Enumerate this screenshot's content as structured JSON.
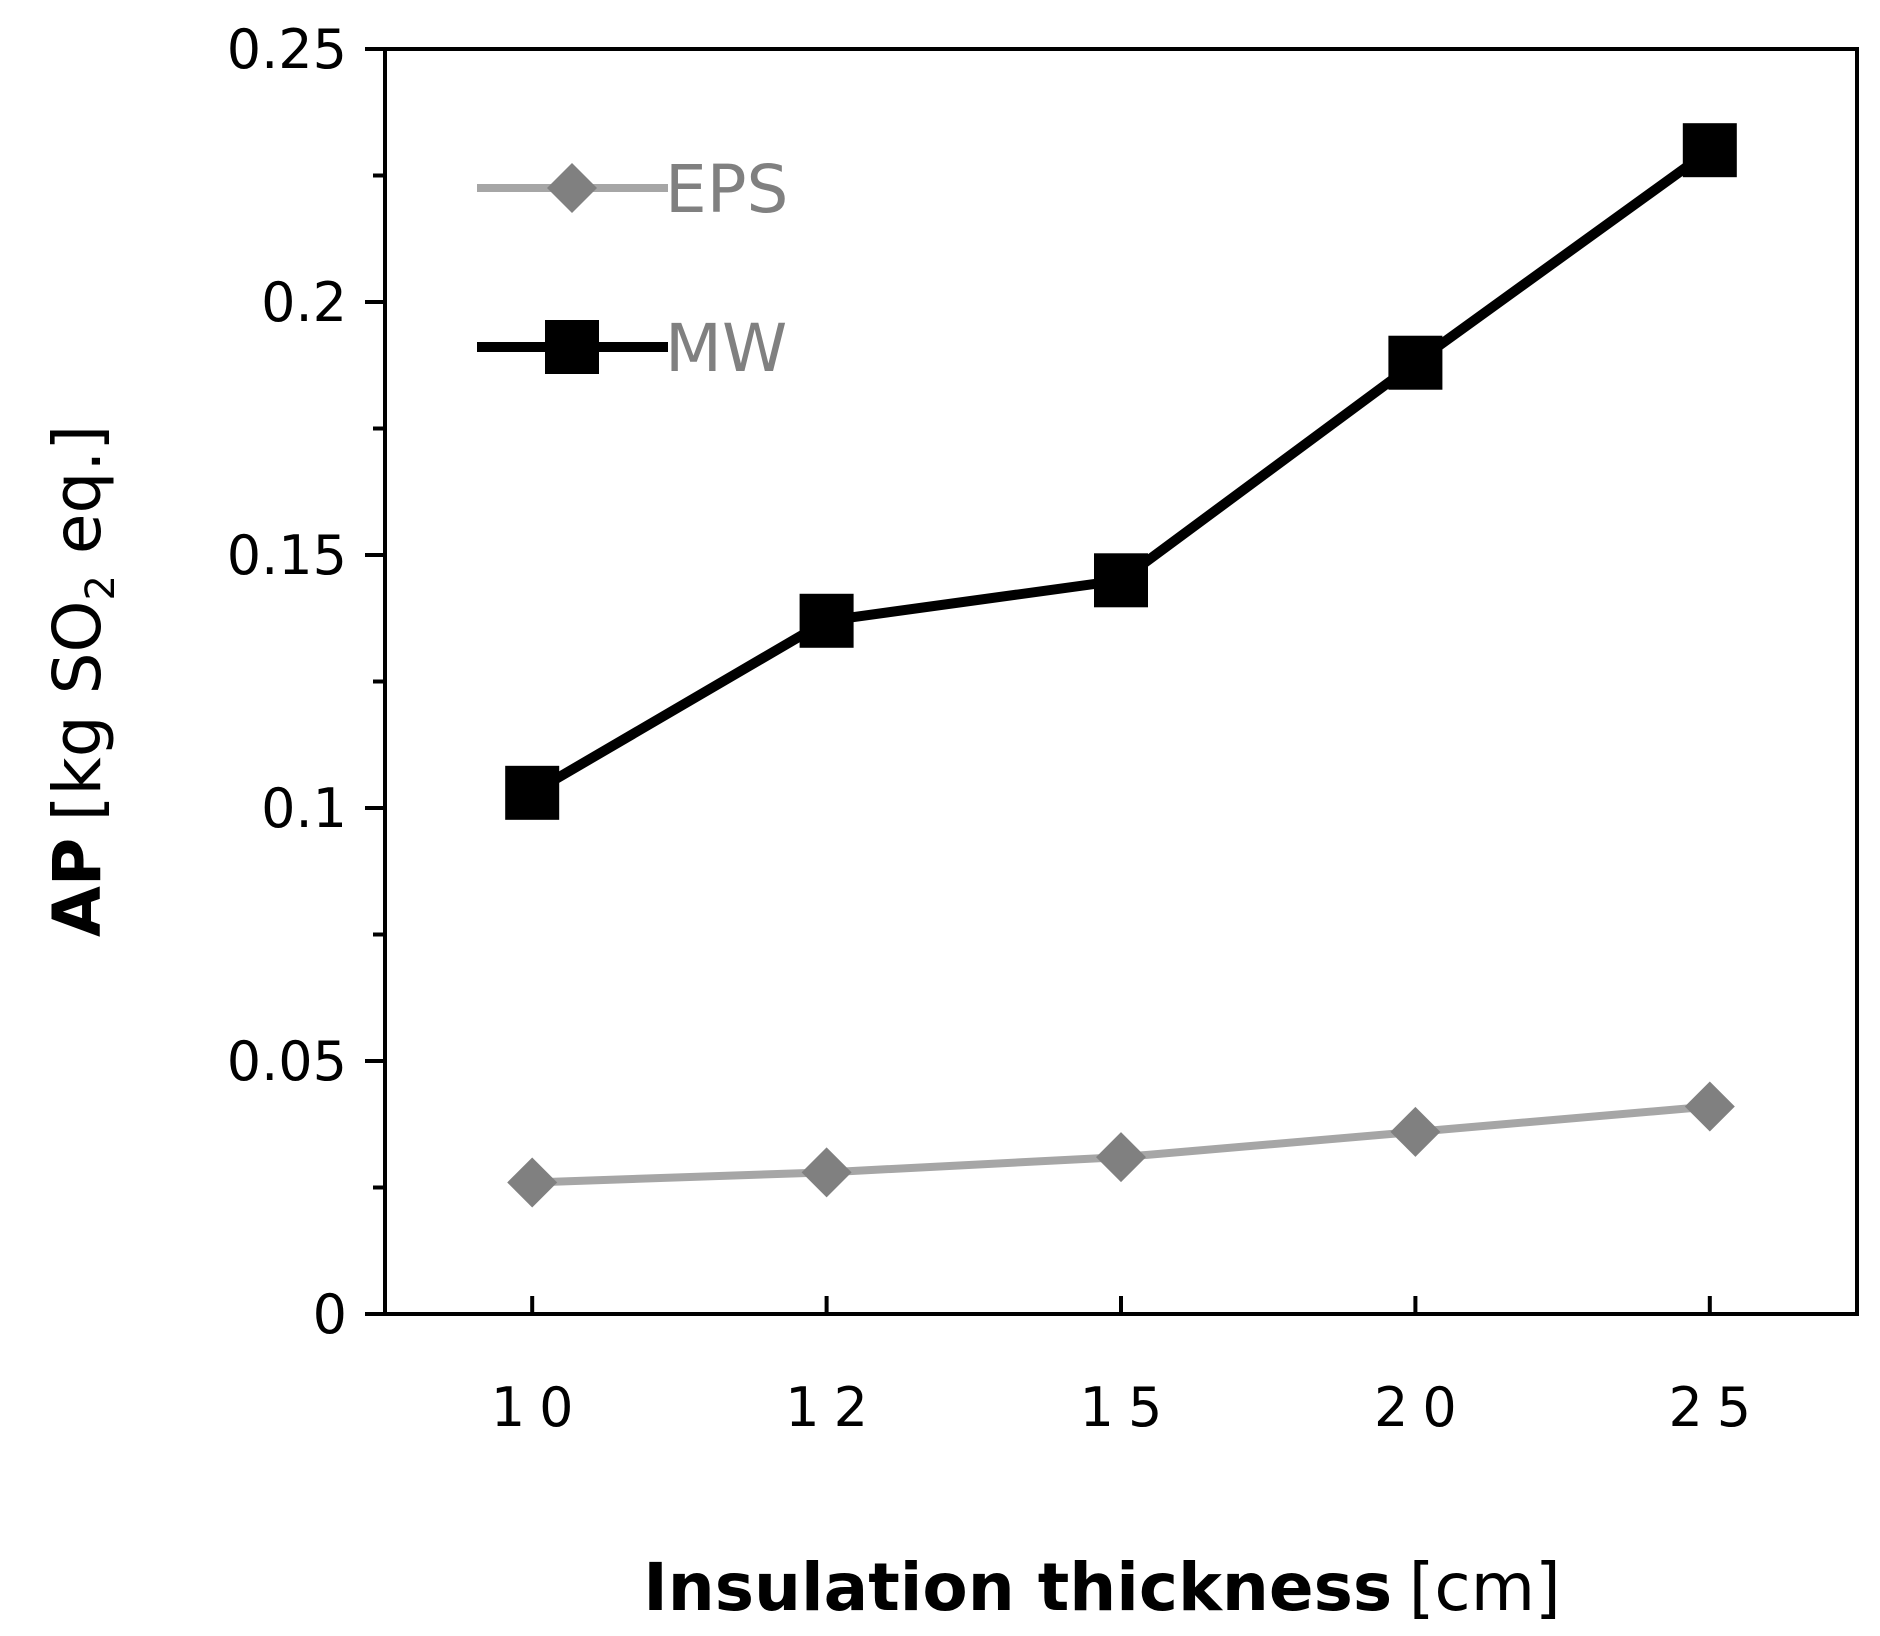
{
  "chart_data": {
    "type": "line",
    "categories": [
      "10",
      "12",
      "15",
      "20",
      "25"
    ],
    "series": [
      {
        "name": "EPS",
        "values": [
          0.026,
          0.028,
          0.031,
          0.036,
          0.041
        ],
        "color": "#a6a6a6",
        "marker": "diamond",
        "marker_color": "#808080"
      },
      {
        "name": "MW",
        "values": [
          0.103,
          0.137,
          0.145,
          0.188,
          0.23
        ],
        "color": "#000000",
        "marker": "square",
        "marker_color": "#000000"
      }
    ],
    "ylim": [
      0,
      0.25
    ],
    "y_major_ticks": [
      {
        "value": 0,
        "label": "0"
      },
      {
        "value": 0.05,
        "label": "0.05"
      },
      {
        "value": 0.1,
        "label": "0.1"
      },
      {
        "value": 0.15,
        "label": "0.15"
      },
      {
        "value": 0.2,
        "label": "0.2"
      },
      {
        "value": 0.25,
        "label": "0.25"
      }
    ],
    "y_minor_ticks": [
      0.025,
      0.075,
      0.125,
      0.175,
      0.225
    ],
    "ylabel": {
      "bold": "AP",
      "normal_pre": "[kg SO",
      "subscript": "2",
      "normal_post": " eq.]"
    },
    "xlabel": {
      "bold": "Insulation thickness",
      "normal": "[cm]"
    },
    "legend_label_color": "#808080",
    "legend_position": "top-left",
    "grid": false
  }
}
